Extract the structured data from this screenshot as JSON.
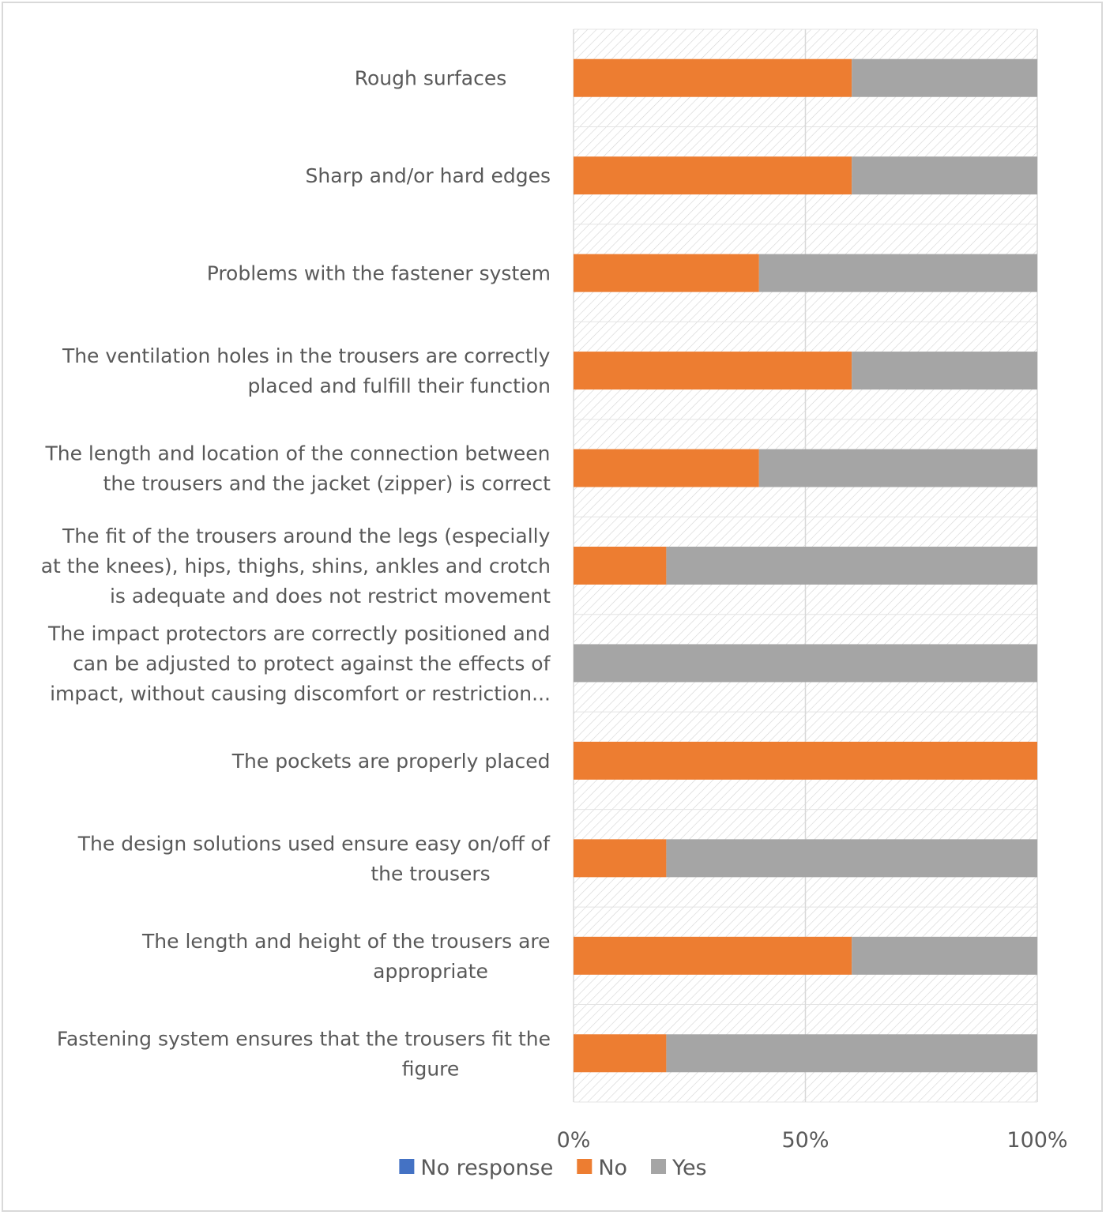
{
  "chart_data": {
    "type": "bar",
    "orientation": "horizontal",
    "stacked": "percent",
    "categories": [
      [
        "Rough surfaces"
      ],
      [
        "Sharp and/or hard edges"
      ],
      [
        "Problems with the fastener system"
      ],
      [
        "The ventilation holes in the trousers are correctly",
        "placed and fulfill their function"
      ],
      [
        "The length and location of the connection between",
        "the trousers and the jacket (zipper) is correct"
      ],
      [
        "The fit of the trousers around the legs (especially",
        "at the knees), hips, thighs, shins, ankles and crotch",
        "is adequate and does not restrict movement"
      ],
      [
        "The impact protectors are correctly positioned and",
        "can be adjusted to protect against the effects of",
        "impact, without causing discomfort or restriction..."
      ],
      [
        "The pockets are properly placed"
      ],
      [
        "The design solutions used ensure easy on/off of",
        "the trousers"
      ],
      [
        "The length and height of the trousers are",
        "appropriate"
      ],
      [
        "Fastening system ensures that the trousers fit the",
        "figure"
      ]
    ],
    "series": [
      {
        "name": "No response",
        "color": "#4472c4",
        "values": [
          0,
          0,
          0,
          0,
          0,
          0,
          0,
          0,
          0,
          0,
          0
        ]
      },
      {
        "name": "No",
        "color": "#ed7d31",
        "values": [
          60,
          60,
          40,
          60,
          40,
          20,
          0,
          100,
          20,
          60,
          20
        ]
      },
      {
        "name": "Yes",
        "color": "#a5a5a5",
        "values": [
          40,
          40,
          60,
          40,
          60,
          80,
          100,
          0,
          80,
          40,
          80
        ]
      }
    ],
    "xlim": [
      0,
      100
    ],
    "x_ticks": [
      "0%",
      "50%",
      "100%"
    ],
    "x_tick_values": [
      0,
      50,
      100
    ],
    "grid": true,
    "legend": "bottom",
    "title": "",
    "xlabel": "",
    "ylabel": ""
  }
}
